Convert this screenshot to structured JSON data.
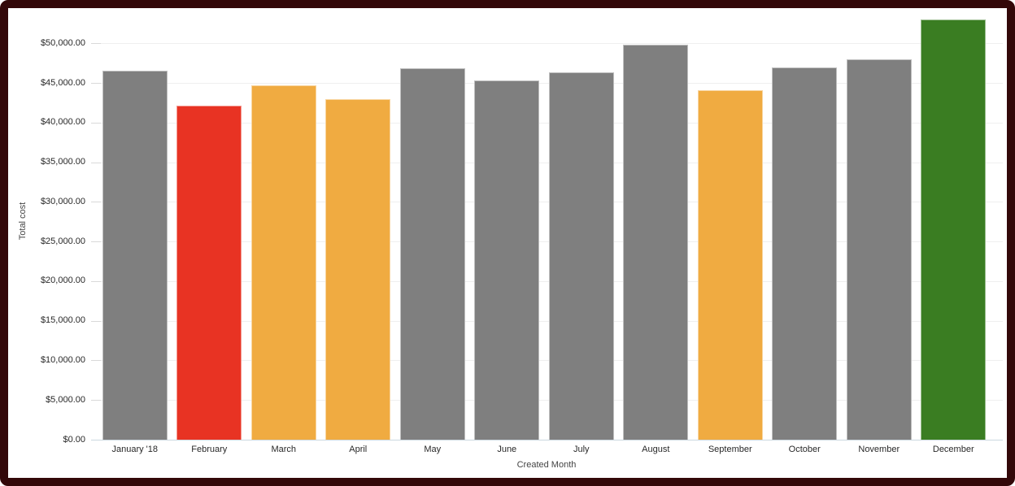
{
  "frame": {
    "border_color": "#330809",
    "background_color": "#ffffff"
  },
  "chart_data": {
    "type": "bar",
    "title": "",
    "xlabel": "Created Month",
    "ylabel": "Total cost",
    "categories": [
      "January '18",
      "February",
      "March",
      "April",
      "May",
      "June",
      "July",
      "August",
      "September",
      "October",
      "November",
      "December"
    ],
    "values": [
      46500,
      42100,
      44700,
      43000,
      46900,
      45300,
      46300,
      49800,
      44100,
      47000,
      48000,
      53000
    ],
    "bar_color_roles": [
      "gray",
      "red",
      "orange",
      "orange",
      "gray",
      "gray",
      "gray",
      "gray",
      "orange",
      "gray",
      "gray",
      "green"
    ],
    "palette": {
      "gray": "#7F7F7F",
      "red": "#E83323",
      "orange": "#F0AB41",
      "green": "#3A7D22"
    },
    "y_ticks": {
      "values": [
        0,
        5000,
        10000,
        15000,
        20000,
        25000,
        30000,
        35000,
        40000,
        45000,
        50000
      ],
      "labels": [
        "$0.00",
        "$5,000.00",
        "$10,000.00",
        "$15,000.00",
        "$20,000.00",
        "$25,000.00",
        "$30,000.00",
        "$35,000.00",
        "$40,000.00",
        "$45,000.00",
        "$50,000.00"
      ]
    },
    "ylim": [
      0,
      53000
    ],
    "grid": true,
    "legend_position": "none",
    "axis_text_color": "#282828",
    "gridline_color": "#efefef",
    "tick_color": "#d9d9d9",
    "baseline_color": "#ccd8e0"
  }
}
